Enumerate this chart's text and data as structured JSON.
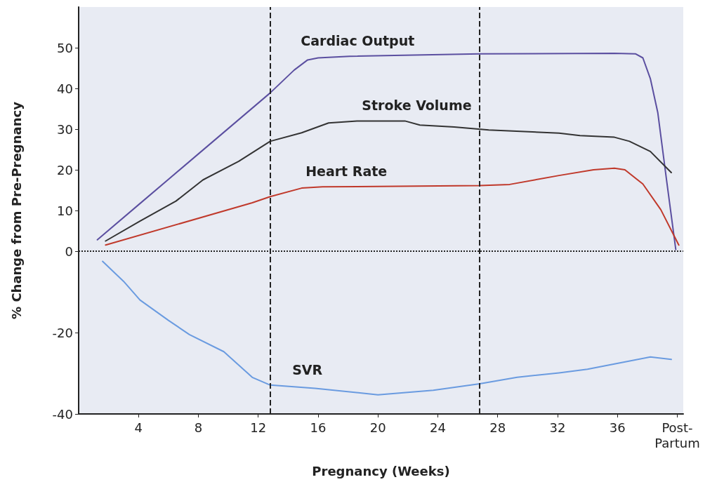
{
  "chart_data": {
    "type": "line",
    "xlabel": "Pregnancy (Weeks)",
    "ylabel": "% Change from Pre-Pregnancy",
    "xlim": [
      0,
      40.4
    ],
    "xticks": [
      4,
      8,
      12,
      16,
      20,
      24,
      28,
      32,
      36,
      {
        "value": 40,
        "label": "Post-Partum"
      }
    ],
    "ylim": [
      -40,
      60
    ],
    "yticks": [
      -40,
      -20,
      0,
      10,
      20,
      30,
      40,
      50
    ],
    "grid": false,
    "legend": false,
    "marker": "none",
    "line_style": "solid",
    "series": [
      {
        "name": "Cardiac Output",
        "color": "#5b4fa0",
        "x": [
          1.25,
          4,
          8,
          12.8,
          14.4,
          15.3,
          16,
          18.1,
          26.8,
          35.8,
          37.2,
          37.7,
          38.2,
          38.7,
          39.3,
          39.9
        ],
        "values": [
          2.8,
          11.4,
          23.9,
          38.9,
          44.5,
          47,
          47.5,
          47.9,
          48.5,
          48.6,
          48.5,
          47.5,
          42.4,
          34,
          17,
          0.4
        ]
      },
      {
        "name": "Stroke Volume",
        "color": "#333333",
        "x": [
          1.8,
          4.1,
          6.5,
          8.3,
          10.7,
          12.8,
          14.9,
          16.7,
          18.6,
          21.8,
          22.8,
          25.1,
          27.4,
          32.1,
          33.5,
          35.8,
          36.8,
          38.2,
          39.6
        ],
        "values": [
          2.5,
          7.4,
          12.3,
          17.5,
          22.1,
          27,
          29.1,
          31.5,
          32,
          32,
          31,
          30.5,
          29.8,
          29,
          28.4,
          28,
          27,
          24.5,
          19.3
        ]
      },
      {
        "name": "Heart Rate",
        "color": "#c0392b",
        "x": [
          1.8,
          11.6,
          12.8,
          14.9,
          16.3,
          26.8,
          28.8,
          32.1,
          34.4,
          35.8,
          36.5,
          37.7,
          38.9,
          40.1
        ],
        "values": [
          1.5,
          11.9,
          13.4,
          15.5,
          15.8,
          16.1,
          16.4,
          18.6,
          20,
          20.4,
          20,
          16.5,
          10.2,
          1.5
        ]
      },
      {
        "name": "SVR",
        "color": "#6a9be0",
        "x": [
          1.6,
          3,
          4.1,
          6,
          7.4,
          9.7,
          11.6,
          12.8,
          15.8,
          20,
          23.7,
          26.8,
          29.3,
          32.1,
          34,
          35.8,
          38.2,
          39.6
        ],
        "values": [
          -2.5,
          -7.4,
          -12,
          -17,
          -20.5,
          -24.7,
          -31,
          -32.9,
          -33.7,
          -35.3,
          -34.2,
          -32.6,
          -31,
          -29.9,
          -29,
          -27.7,
          -26,
          -26.6
        ]
      }
    ],
    "ref_lines": [
      {
        "axis": "x",
        "value": 12.8,
        "line_style": "dashed",
        "color": "#222222"
      },
      {
        "axis": "x",
        "value": 26.8,
        "line_style": "dashed",
        "color": "#222222"
      },
      {
        "axis": "y",
        "value": 0,
        "line_style": "dotted",
        "color": "#222222"
      }
    ]
  }
}
